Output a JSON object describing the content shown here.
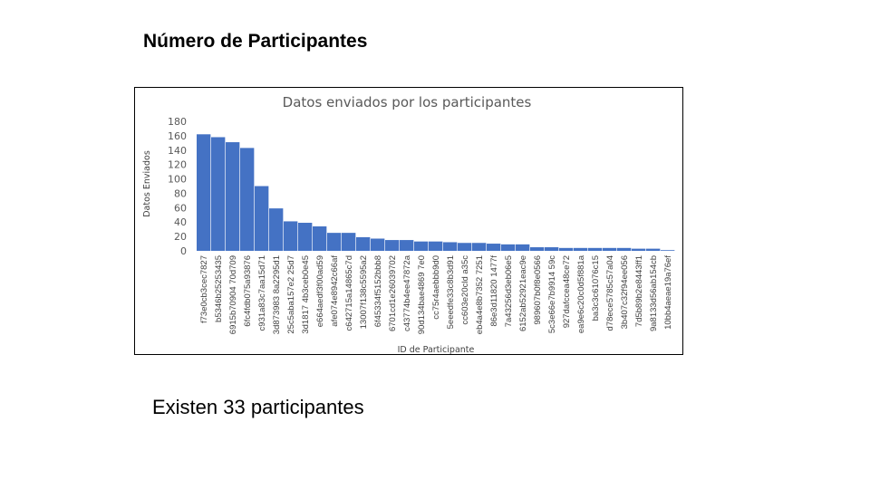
{
  "slide": {
    "title": "Número de Participantes",
    "body_text": "Existen 33 participantes"
  },
  "colors": {
    "bar": "#4472c4",
    "text": "#595959"
  },
  "chart_data": {
    "type": "bar",
    "title": "Datos enviados por los participantes",
    "xlabel": "ID de Participante",
    "ylabel": "Datos Enviados",
    "ylim": [
      0,
      180
    ],
    "yticks": [
      0,
      20,
      40,
      60,
      80,
      100,
      120,
      140,
      160,
      180
    ],
    "grid": false,
    "legend": "none",
    "categories": [
      "f73e0cb3cec7827",
      "b5346b25253435",
      "6915b70904 70d709",
      "6fc4fdb075a93876",
      "c931a83c7aa15d71",
      "3d873983 8a2295d1",
      "25c5aba157e2 25d7",
      "3d1817 4b3ceb0e45",
      "e664aedf3f00ad59",
      "afe074e8942c66af",
      "c642715a14865c7d",
      "13007f138c5595a2",
      "6f45334f5152bbb8",
      "6701cd1e26039702",
      "c43774b4ee47872a",
      "90d134bae4869 7e0",
      "cc75r4aebbb9d0",
      "5eeedfe33c8b3d91",
      "cc603e20cld a35c",
      "eb4a4e8b7352 7251",
      "86e3d11820 1477f",
      "7a43256d3eb06e5",
      "6152ab52921eac9e",
      "989607b0f8e0566",
      "5c3e66e7b9914 59c",
      "927dafccea48ce72",
      "ea9e6c20c0d5f881a",
      "ba3c3c61076c15",
      "d78ece5785c57a04",
      "3b407c32f94ee056",
      "7d5b89b2e8443ff1",
      "9a8133d56ab154cb",
      "10bb4aeae19a76ef"
    ],
    "values": [
      162,
      158,
      151,
      143,
      90,
      59,
      41,
      39,
      34,
      25,
      25,
      19,
      17,
      15,
      15,
      13,
      13,
      12,
      11,
      11,
      10,
      9,
      9,
      5,
      5,
      4,
      4,
      4,
      4,
      4,
      3,
      3,
      1
    ]
  }
}
